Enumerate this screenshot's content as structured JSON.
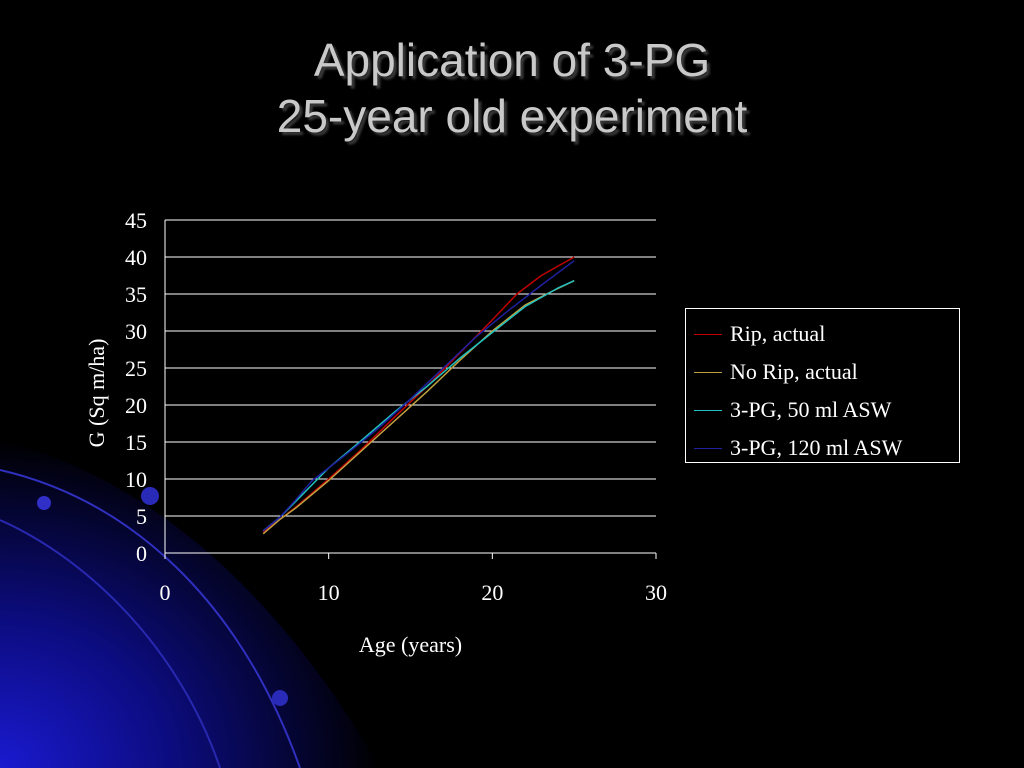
{
  "slide": {
    "title_line1": "Application of 3-PG",
    "title_line2": "25-year old experiment"
  },
  "colors": {
    "background": "#000000",
    "title": "#c9c9c9",
    "deco_blue": "#1010a0"
  },
  "chart_data": {
    "type": "line",
    "xlabel": "Age (years)",
    "ylabel": "G (Sq m/ha)",
    "xlim": [
      0,
      30
    ],
    "ylim": [
      0,
      45
    ],
    "x_ticks": [
      0,
      10,
      20,
      30
    ],
    "y_ticks": [
      0,
      5,
      10,
      15,
      20,
      25,
      30,
      35,
      40,
      45
    ],
    "grid": true,
    "legend_position": "right",
    "series": [
      {
        "name": "Rip, actual",
        "color": "#c00000",
        "points": [
          [
            6,
            2.8
          ],
          [
            7,
            4.5
          ],
          [
            8,
            6.2
          ],
          [
            10,
            10
          ],
          [
            12,
            14
          ],
          [
            14,
            18.3
          ],
          [
            16,
            22.5
          ],
          [
            18,
            27
          ],
          [
            20,
            31.5
          ],
          [
            21.5,
            35
          ],
          [
            23,
            37.5
          ],
          [
            25,
            40
          ]
        ]
      },
      {
        "name": "No Rip, actual",
        "color": "#c0a040",
        "points": [
          [
            6,
            2.6
          ],
          [
            7,
            4.5
          ],
          [
            8,
            6.1
          ],
          [
            10,
            9.8
          ],
          [
            12,
            13.8
          ],
          [
            14,
            17.8
          ],
          [
            16,
            21.8
          ],
          [
            18,
            26
          ],
          [
            20,
            30
          ],
          [
            22,
            33.5
          ],
          [
            23.5,
            35.2
          ],
          [
            25,
            36.8
          ]
        ]
      },
      {
        "name": "3-PG, 50 ml ASW",
        "color": "#20c0c0",
        "points": [
          [
            6,
            3
          ],
          [
            7,
            4.8
          ],
          [
            8,
            7
          ],
          [
            10,
            11.5
          ],
          [
            12,
            15.2
          ],
          [
            14,
            19
          ],
          [
            16,
            22.5
          ],
          [
            18,
            26.3
          ],
          [
            20,
            29.8
          ],
          [
            22,
            33.3
          ],
          [
            24,
            35.8
          ],
          [
            25,
            36.8
          ]
        ]
      },
      {
        "name": "3-PG, 120 ml ASW",
        "color": "#2020a0",
        "points": [
          [
            6,
            3
          ],
          [
            7,
            4.8
          ],
          [
            8,
            7.2
          ],
          [
            9,
            9.8
          ],
          [
            11,
            13.2
          ],
          [
            13,
            16.8
          ],
          [
            15,
            20.8
          ],
          [
            17,
            25
          ],
          [
            19,
            29.2
          ],
          [
            21,
            32.8
          ],
          [
            23,
            36.2
          ],
          [
            25,
            39.5
          ]
        ]
      }
    ]
  }
}
